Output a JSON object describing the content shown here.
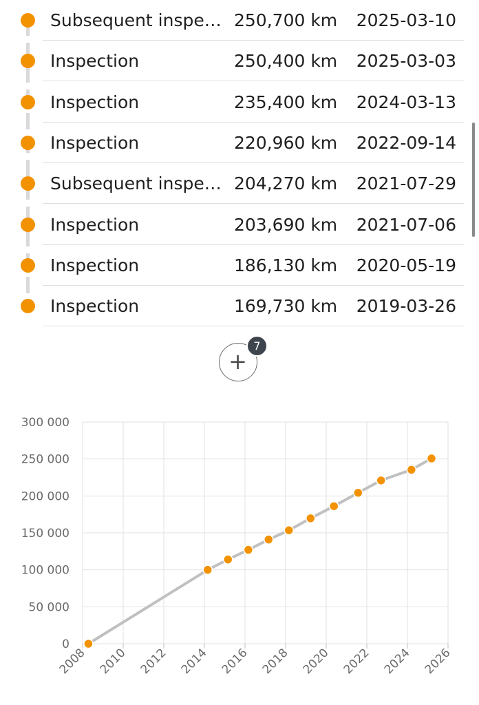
{
  "inspections": [
    {
      "type": "Subsequent inspection",
      "km": "250,700 km",
      "date": "2025-03-10"
    },
    {
      "type": "Inspection",
      "km": "250,400 km",
      "date": "2025-03-03"
    },
    {
      "type": "Inspection",
      "km": "235,400 km",
      "date": "2024-03-13"
    },
    {
      "type": "Inspection",
      "km": "220,960 km",
      "date": "2022-09-14"
    },
    {
      "type": "Subsequent inspection",
      "km": "204,270 km",
      "date": "2021-07-29"
    },
    {
      "type": "Inspection",
      "km": "203,690 km",
      "date": "2021-07-06"
    },
    {
      "type": "Inspection",
      "km": "186,130 km",
      "date": "2020-05-19"
    },
    {
      "type": "Inspection",
      "km": "169,730 km",
      "date": "2019-03-26"
    }
  ],
  "show_more": {
    "icon": "plus-icon",
    "glyph": "+",
    "count": "7"
  },
  "colors": {
    "accent": "#f39200",
    "badge": "#3f454d",
    "line": "#c0c0c0",
    "grid": "#e2e2e2"
  },
  "chart_data": {
    "type": "line",
    "title": "",
    "xlabel": "",
    "ylabel": "",
    "grid": true,
    "xlim": [
      2008,
      2026
    ],
    "ylim": [
      0,
      300000
    ],
    "x_ticks": [
      2008,
      2010,
      2012,
      2014,
      2016,
      2018,
      2020,
      2022,
      2024,
      2026
    ],
    "y_ticks": [
      0,
      50000,
      100000,
      150000,
      200000,
      250000,
      300000
    ],
    "y_tick_labels": [
      "0",
      "50 000",
      "100 000",
      "150 000",
      "200 000",
      "250 000",
      "300 000"
    ],
    "series": [
      {
        "points": [
          {
            "x": "2008-04-15",
            "y": 0
          },
          {
            "x": "2014-03-01",
            "y": 100000
          },
          {
            "x": "2015-03-01",
            "y": 114000
          },
          {
            "x": "2016-03-01",
            "y": 127000
          },
          {
            "x": "2017-03-01",
            "y": 141000
          },
          {
            "x": "2018-03-01",
            "y": 153500
          },
          {
            "x": "2019-03-26",
            "y": 169730
          },
          {
            "x": "2020-05-19",
            "y": 186130
          },
          {
            "x": "2021-07-29",
            "y": 204270
          },
          {
            "x": "2022-09-14",
            "y": 220960
          },
          {
            "x": "2024-03-13",
            "y": 235400
          },
          {
            "x": "2025-03-10",
            "y": 250700
          }
        ]
      }
    ]
  }
}
